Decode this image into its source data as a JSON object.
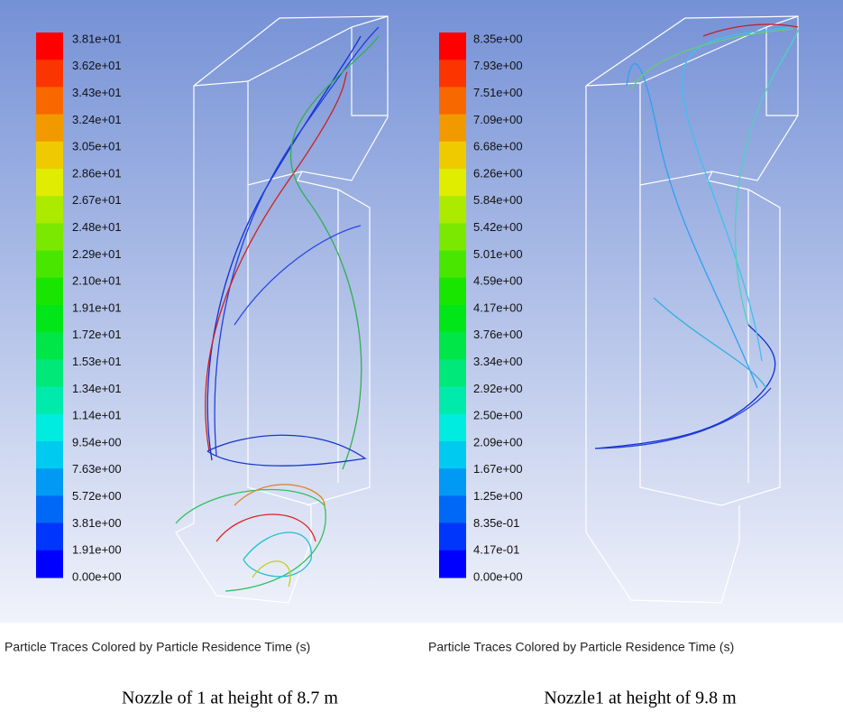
{
  "panels": [
    {
      "colorbar_labels": [
        "3.81e+01",
        "3.62e+01",
        "3.43e+01",
        "3.24e+01",
        "3.05e+01",
        "2.86e+01",
        "2.67e+01",
        "2.48e+01",
        "2.29e+01",
        "2.10e+01",
        "1.91e+01",
        "1.72e+01",
        "1.53e+01",
        "1.34e+01",
        "1.14e+01",
        "9.54e+00",
        "7.63e+00",
        "5.72e+00",
        "3.81e+00",
        "1.91e+00",
        "0.00e+00"
      ],
      "plot_title": "Particle Traces Colored by Particle Residence Time (s)",
      "caption": "Nozzle of 1 at height of 8.7 m"
    },
    {
      "colorbar_labels": [
        "8.35e+00",
        "7.93e+00",
        "7.51e+00",
        "7.09e+00",
        "6.68e+00",
        "6.26e+00",
        "5.84e+00",
        "5.42e+00",
        "5.01e+00",
        "4.59e+00",
        "4.17e+00",
        "3.76e+00",
        "3.34e+00",
        "2.92e+00",
        "2.50e+00",
        "2.09e+00",
        "1.67e+00",
        "1.25e+00",
        "8.35e-01",
        "4.17e-01",
        "0.00e+00"
      ],
      "plot_title": "Particle Traces Colored by Particle Residence Time (s)",
      "caption": "Nozzle1 at height of 9.8 m"
    }
  ]
}
